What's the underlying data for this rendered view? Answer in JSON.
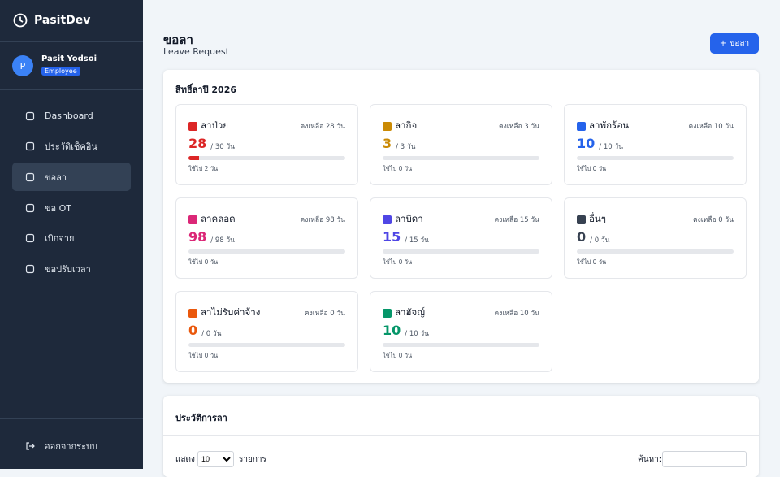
{
  "sidebar": {
    "brand": "PasitDev",
    "user": {
      "avatar": "P",
      "name": "Pasit Yodsoi",
      "role": "Employee"
    },
    "menu": [
      {
        "label": "Dashboard"
      },
      {
        "label": "ประวัติเช็คอิน"
      },
      {
        "label": "ขอลา",
        "active": true
      },
      {
        "label": "ขอ OT"
      },
      {
        "label": "เบิกจ่าย"
      },
      {
        "label": "ขอปรับเวลา"
      }
    ],
    "logout": "ออกจากระบบ"
  },
  "header": {
    "title": "ขอลา",
    "subtitle": "Leave Request",
    "button": "+ ขอลา"
  },
  "quota": {
    "title": "สิทธิ์ลาปี 2026",
    "cards": [
      {
        "name": "ลาป่วย",
        "remaining": "คงเหลือ 28 วัน",
        "available": 28,
        "total_label": "/ 30 วัน",
        "used_label": "ใช้ไป 2 วัน",
        "used": 2,
        "total": 30,
        "color": "#dc2626"
      },
      {
        "name": "ลากิจ",
        "remaining": "คงเหลือ 3 วัน",
        "available": 3,
        "total_label": "/ 3 วัน",
        "used_label": "ใช้ไป 0 วัน",
        "used": 0,
        "total": 3,
        "color": "#ca8a04"
      },
      {
        "name": "ลาพักร้อน",
        "remaining": "คงเหลือ 10 วัน",
        "available": 10,
        "total_label": "/ 10 วัน",
        "used_label": "ใช้ไป 0 วัน",
        "used": 0,
        "total": 10,
        "color": "#2563eb"
      },
      {
        "name": "ลาคลอด",
        "remaining": "คงเหลือ 98 วัน",
        "available": 98,
        "total_label": "/ 98 วัน",
        "used_label": "ใช้ไป 0 วัน",
        "used": 0,
        "total": 98,
        "color": "#db2777"
      },
      {
        "name": "ลาบิดา",
        "remaining": "คงเหลือ 15 วัน",
        "available": 15,
        "total_label": "/ 15 วัน",
        "used_label": "ใช้ไป 0 วัน",
        "used": 0,
        "total": 15,
        "color": "#4f46e5"
      },
      {
        "name": "อื่นๆ",
        "remaining": "คงเหลือ 0 วัน",
        "available": 0,
        "total_label": "/ 0 วัน",
        "used_label": "ใช้ไป 0 วัน",
        "used": 0,
        "total": 0,
        "color": "#374151"
      },
      {
        "name": "ลาไม่รับค่าจ้าง",
        "remaining": "คงเหลือ 0 วัน",
        "available": 0,
        "total_label": "/ 0 วัน",
        "used_label": "ใช้ไป 0 วัน",
        "used": 0,
        "total": 0,
        "color": "#ea580c"
      },
      {
        "name": "ลาฮัจญ์",
        "remaining": "คงเหลือ 10 วัน",
        "available": 10,
        "total_label": "/ 10 วัน",
        "used_label": "ใช้ไป 0 วัน",
        "used": 0,
        "total": 10,
        "color": "#059669"
      }
    ]
  },
  "history": {
    "title": "ประวัติการลา",
    "show": "แสดง",
    "page_size": "10",
    "entries": "รายการ",
    "search": "ค้นหา:"
  }
}
